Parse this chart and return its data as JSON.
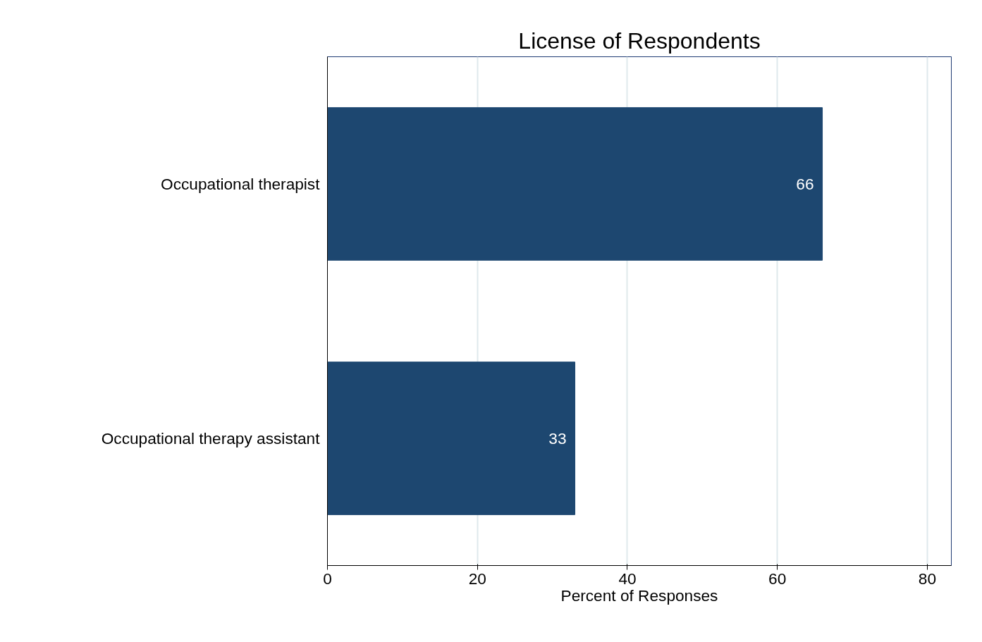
{
  "chart_data": {
    "type": "bar",
    "orientation": "horizontal",
    "title": "License of Respondents",
    "xlabel": "Percent of Responses",
    "categories": [
      "Occupational therapist",
      "Occupational therapy assistant"
    ],
    "values": [
      66,
      33
    ],
    "color": "#1d4770",
    "data_labels": true,
    "xlim": [
      0,
      83.2
    ],
    "xticks": [
      0,
      20,
      40,
      60,
      80
    ],
    "grid": "x"
  }
}
